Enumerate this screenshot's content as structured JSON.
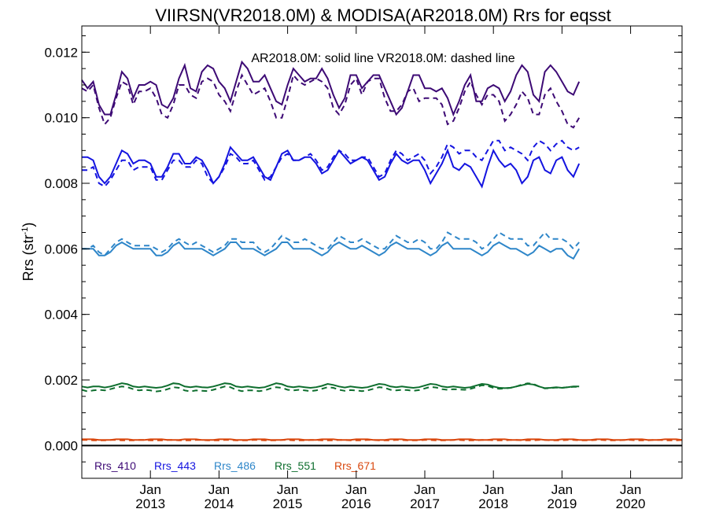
{
  "chart_data": {
    "type": "line",
    "title": "VIIRSN(VR2018.0M) & MODISA(AR2018.0M)  Rrs for eqsst",
    "ylabel": "Rrs (str",
    "ylabel_sup": "-1",
    "ylabel_close": ")",
    "annotation": "AR2018.0M: solid line   VR2018.0M: dashed line",
    "xlim": [
      2012.0,
      2020.75
    ],
    "ylim": [
      -0.001,
      0.0128
    ],
    "yticks": [
      {
        "value": 0.0,
        "label": "0.000"
      },
      {
        "value": 0.002,
        "label": "0.002"
      },
      {
        "value": 0.004,
        "label": "0.004"
      },
      {
        "value": 0.006,
        "label": "0.006"
      },
      {
        "value": 0.008,
        "label": "0.008"
      },
      {
        "value": 0.01,
        "label": "0.010"
      },
      {
        "value": 0.012,
        "label": "0.012"
      }
    ],
    "xticks": [
      {
        "value": 2013.0,
        "month": "Jan",
        "year": "2013"
      },
      {
        "value": 2014.0,
        "month": "Jan",
        "year": "2014"
      },
      {
        "value": 2015.0,
        "month": "Jan",
        "year": "2015"
      },
      {
        "value": 2016.0,
        "month": "Jan",
        "year": "2016"
      },
      {
        "value": 2017.0,
        "month": "Jan",
        "year": "2017"
      },
      {
        "value": 2018.0,
        "month": "Jan",
        "year": "2018"
      },
      {
        "value": 2019.0,
        "month": "Jan",
        "year": "2019"
      },
      {
        "value": 2020.0,
        "month": "Jan",
        "year": "2020"
      }
    ],
    "x_start": 2012.0,
    "x_step": 0.08333,
    "zero_line": true,
    "series": [
      {
        "name": "Rrs_410",
        "color": "#3d0a75",
        "solid": [
          0.01115,
          0.0109,
          0.0111,
          0.0104,
          0.0101,
          0.0101,
          0.0107,
          0.0114,
          0.0112,
          0.0106,
          0.011,
          0.011,
          0.0111,
          0.011,
          0.0104,
          0.0103,
          0.0106,
          0.0112,
          0.0116,
          0.0109,
          0.0108,
          0.0114,
          0.0116,
          0.0115,
          0.0111,
          0.0109,
          0.0105,
          0.0111,
          0.0117,
          0.0115,
          0.0111,
          0.0111,
          0.0113,
          0.0109,
          0.0105,
          0.0104,
          0.011,
          0.0115,
          0.0113,
          0.0111,
          0.0112,
          0.0112,
          0.0115,
          0.0112,
          0.0107,
          0.0103,
          0.0106,
          0.0113,
          0.0113,
          0.0109,
          0.0111,
          0.0113,
          0.0113,
          0.0109,
          0.0105,
          0.0101,
          0.0103,
          0.0108,
          0.0113,
          0.0113,
          0.0109,
          0.0109,
          0.0108,
          0.0109,
          0.0106,
          0.0101,
          0.0105,
          0.011,
          0.0113,
          0.0105,
          0.0105,
          0.0109,
          0.011,
          0.0109,
          0.0105,
          0.0108,
          0.0113,
          0.0116,
          0.0114,
          0.0107,
          0.0105,
          0.0114,
          0.0116,
          0.0114,
          0.0111,
          0.0108,
          0.0107,
          0.0111
        ],
        "dashed": [
          0.0109,
          0.0108,
          0.011,
          0.0103,
          0.0098,
          0.01,
          0.0106,
          0.0111,
          0.011,
          0.0104,
          0.0108,
          0.0108,
          0.0109,
          0.0106,
          0.0101,
          0.01,
          0.0104,
          0.011,
          0.011,
          0.0107,
          0.0106,
          0.0111,
          0.0112,
          0.0111,
          0.0107,
          0.0105,
          0.0102,
          0.0108,
          0.0113,
          0.011,
          0.0107,
          0.0108,
          0.0109,
          0.0105,
          0.01,
          0.01,
          0.0106,
          0.0113,
          0.0111,
          0.011,
          0.0111,
          0.0112,
          0.0111,
          0.0109,
          0.0103,
          0.0101,
          0.0104,
          0.011,
          0.0112,
          0.0107,
          0.0111,
          0.0112,
          0.0112,
          0.0106,
          0.0102,
          0.0102,
          0.0104,
          0.0108,
          0.0109,
          0.0105,
          0.0106,
          0.0106,
          0.0106,
          0.0104,
          0.0098,
          0.0099,
          0.0103,
          0.0108,
          0.0111,
          0.0107,
          0.0104,
          0.0107,
          0.0107,
          0.0105,
          0.0099,
          0.0101,
          0.0104,
          0.0108,
          0.0106,
          0.0101,
          0.0101,
          0.0107,
          0.0109,
          0.0105,
          0.0102,
          0.0098,
          0.0097,
          0.01
        ]
      },
      {
        "name": "Rrs_443",
        "color": "#1414e0",
        "solid": [
          0.0088,
          0.0088,
          0.0087,
          0.0082,
          0.008,
          0.0082,
          0.0086,
          0.009,
          0.0089,
          0.0086,
          0.0087,
          0.0087,
          0.0086,
          0.0082,
          0.0082,
          0.0085,
          0.0089,
          0.0089,
          0.0086,
          0.0086,
          0.0088,
          0.0087,
          0.0084,
          0.008,
          0.0082,
          0.0086,
          0.0091,
          0.0089,
          0.0087,
          0.0087,
          0.0088,
          0.0085,
          0.0082,
          0.0081,
          0.0085,
          0.0089,
          0.009,
          0.0087,
          0.0087,
          0.0088,
          0.0088,
          0.0086,
          0.0083,
          0.0084,
          0.0087,
          0.009,
          0.0088,
          0.0086,
          0.0087,
          0.0088,
          0.0087,
          0.0084,
          0.0081,
          0.0082,
          0.0086,
          0.0089,
          0.0087,
          0.0086,
          0.0087,
          0.0087,
          0.0084,
          0.008,
          0.0083,
          0.0086,
          0.009,
          0.0085,
          0.0084,
          0.0086,
          0.0085,
          0.0082,
          0.0079,
          0.0085,
          0.009,
          0.0087,
          0.0085,
          0.0086,
          0.0084,
          0.008,
          0.0082,
          0.0087,
          0.0088,
          0.0084,
          0.0083,
          0.0087,
          0.0088,
          0.0084,
          0.0082,
          0.0086
        ],
        "dashed": [
          0.0084,
          0.0084,
          0.0085,
          0.008,
          0.0079,
          0.0081,
          0.0084,
          0.0087,
          0.0087,
          0.0084,
          0.0085,
          0.0085,
          0.0085,
          0.0081,
          0.0081,
          0.0084,
          0.0087,
          0.0087,
          0.0085,
          0.0085,
          0.0087,
          0.0086,
          0.0082,
          0.008,
          0.0082,
          0.0085,
          0.0089,
          0.0088,
          0.0086,
          0.0086,
          0.0087,
          0.0084,
          0.0081,
          0.0082,
          0.0085,
          0.0088,
          0.0089,
          0.0087,
          0.0087,
          0.0088,
          0.0089,
          0.0087,
          0.0084,
          0.0085,
          0.0088,
          0.009,
          0.0089,
          0.0087,
          0.0087,
          0.0088,
          0.0088,
          0.0085,
          0.0082,
          0.0083,
          0.0087,
          0.009,
          0.0089,
          0.0087,
          0.0088,
          0.0089,
          0.0087,
          0.0083,
          0.0085,
          0.0088,
          0.0092,
          0.0091,
          0.0089,
          0.009,
          0.009,
          0.0088,
          0.0087,
          0.009,
          0.0093,
          0.0093,
          0.009,
          0.0091,
          0.009,
          0.0089,
          0.0087,
          0.0091,
          0.0093,
          0.0092,
          0.009,
          0.0092,
          0.0093,
          0.0091,
          0.009,
          0.0091
        ]
      },
      {
        "name": "Rrs_486",
        "color": "#2e86c9",
        "solid": [
          0.006,
          0.006,
          0.006,
          0.0058,
          0.0058,
          0.0059,
          0.0061,
          0.0062,
          0.0061,
          0.006,
          0.006,
          0.006,
          0.006,
          0.0058,
          0.0058,
          0.0059,
          0.0061,
          0.0062,
          0.006,
          0.006,
          0.006,
          0.006,
          0.0059,
          0.0058,
          0.0059,
          0.006,
          0.0062,
          0.0062,
          0.006,
          0.006,
          0.006,
          0.0059,
          0.0058,
          0.0059,
          0.006,
          0.0062,
          0.0062,
          0.006,
          0.006,
          0.006,
          0.006,
          0.0059,
          0.0058,
          0.0059,
          0.0061,
          0.0062,
          0.0061,
          0.006,
          0.006,
          0.0061,
          0.006,
          0.0059,
          0.0058,
          0.0059,
          0.0061,
          0.0062,
          0.0061,
          0.006,
          0.006,
          0.006,
          0.0059,
          0.0058,
          0.0059,
          0.0061,
          0.0062,
          0.006,
          0.006,
          0.006,
          0.006,
          0.0059,
          0.0058,
          0.0059,
          0.0061,
          0.0062,
          0.0061,
          0.006,
          0.006,
          0.0059,
          0.0058,
          0.0059,
          0.0061,
          0.006,
          0.0059,
          0.006,
          0.006,
          0.0058,
          0.0057,
          0.006
        ],
        "dashed": [
          0.006,
          0.006,
          0.0061,
          0.0059,
          0.0058,
          0.006,
          0.0062,
          0.0063,
          0.0062,
          0.0061,
          0.0061,
          0.0061,
          0.0061,
          0.006,
          0.0059,
          0.006,
          0.0062,
          0.0063,
          0.0062,
          0.0061,
          0.0062,
          0.0061,
          0.006,
          0.0059,
          0.006,
          0.0061,
          0.0063,
          0.0063,
          0.0062,
          0.0062,
          0.0062,
          0.006,
          0.0059,
          0.006,
          0.0062,
          0.0064,
          0.0063,
          0.0062,
          0.0062,
          0.0063,
          0.0062,
          0.0061,
          0.006,
          0.006,
          0.0062,
          0.0064,
          0.0063,
          0.0062,
          0.0062,
          0.0063,
          0.0062,
          0.0061,
          0.006,
          0.006,
          0.0062,
          0.0064,
          0.0063,
          0.0062,
          0.0062,
          0.0063,
          0.0062,
          0.006,
          0.006,
          0.0062,
          0.0065,
          0.0064,
          0.0063,
          0.0063,
          0.0063,
          0.0062,
          0.006,
          0.0061,
          0.0063,
          0.0065,
          0.0064,
          0.0063,
          0.0063,
          0.0063,
          0.0061,
          0.0061,
          0.0063,
          0.0065,
          0.0063,
          0.0063,
          0.0063,
          0.0062,
          0.006,
          0.0062
        ]
      },
      {
        "name": "Rrs_551",
        "color": "#0e6e2e",
        "solid": [
          0.0018,
          0.00177,
          0.0018,
          0.0018,
          0.00177,
          0.0018,
          0.00185,
          0.0019,
          0.00187,
          0.0018,
          0.00178,
          0.0018,
          0.00178,
          0.00176,
          0.00178,
          0.00183,
          0.0019,
          0.00188,
          0.0018,
          0.00178,
          0.0018,
          0.00178,
          0.00177,
          0.0018,
          0.00185,
          0.0019,
          0.00188,
          0.0018,
          0.00178,
          0.0018,
          0.00178,
          0.00176,
          0.00178,
          0.00184,
          0.0019,
          0.00187,
          0.0018,
          0.00178,
          0.0018,
          0.00178,
          0.00176,
          0.00178,
          0.00182,
          0.00188,
          0.00185,
          0.0018,
          0.00177,
          0.0018,
          0.00178,
          0.00176,
          0.00178,
          0.00183,
          0.00188,
          0.00186,
          0.0018,
          0.00178,
          0.0018,
          0.00178,
          0.00176,
          0.00178,
          0.00183,
          0.00188,
          0.00186,
          0.0018,
          0.00178,
          0.0018,
          0.00178,
          0.00176,
          0.00178,
          0.00183,
          0.00188,
          0.00186,
          0.0018,
          0.00176,
          0.00175,
          0.00176,
          0.0018,
          0.00184,
          0.00188,
          0.00186,
          0.0018,
          0.00175,
          0.00176,
          0.00178,
          0.00176,
          0.00178,
          0.0018,
          0.0018
        ],
        "dashed": [
          0.0017,
          0.00165,
          0.00168,
          0.0017,
          0.00168,
          0.00172,
          0.00177,
          0.0018,
          0.00178,
          0.00172,
          0.00168,
          0.0017,
          0.00168,
          0.00165,
          0.00167,
          0.00172,
          0.00178,
          0.00176,
          0.00168,
          0.00165,
          0.00168,
          0.00167,
          0.00166,
          0.0017,
          0.00175,
          0.0018,
          0.00178,
          0.0017,
          0.00166,
          0.00168,
          0.00168,
          0.00166,
          0.00168,
          0.00174,
          0.00178,
          0.00176,
          0.0017,
          0.00168,
          0.0017,
          0.00168,
          0.00166,
          0.00168,
          0.00173,
          0.00178,
          0.00176,
          0.0017,
          0.00167,
          0.00169,
          0.00168,
          0.00166,
          0.00168,
          0.00173,
          0.00178,
          0.00176,
          0.0017,
          0.00168,
          0.0017,
          0.00169,
          0.00167,
          0.00169,
          0.00174,
          0.00179,
          0.00177,
          0.00172,
          0.0017,
          0.00172,
          0.00171,
          0.0017,
          0.00173,
          0.00178,
          0.00184,
          0.00182,
          0.00176,
          0.00173,
          0.00174,
          0.00176,
          0.0018,
          0.00186,
          0.0019,
          0.00188,
          0.0018,
          0.00174,
          0.00175,
          0.00177,
          0.00176,
          0.00178,
          0.00179,
          0.00179
        ]
      },
      {
        "name": "Rrs_671",
        "color": "#d9480f",
        "solid_const": 0.00018,
        "dashed_const": 0.00016
      }
    ]
  }
}
